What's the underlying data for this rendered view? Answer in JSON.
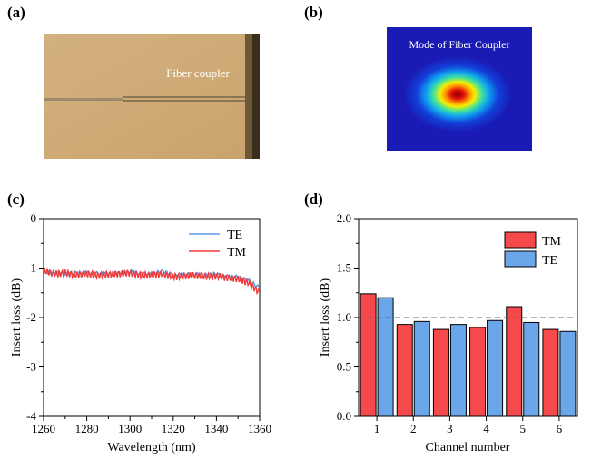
{
  "panels": {
    "a": {
      "label": "(a)",
      "annotation": "Fiber coupler"
    },
    "b": {
      "label": "(b)",
      "title": "Mode of Fiber Coupler"
    },
    "c": {
      "label": "(c)"
    },
    "d": {
      "label": "(d)"
    }
  },
  "colors": {
    "TM": "#f23c3c",
    "TE": "#5a9be6",
    "TM_bar": "#f5494b",
    "TE_bar": "#6aa6e8"
  },
  "chart_data": [
    {
      "type": "line",
      "panel": "c",
      "xlabel": "Wavelength (nm)",
      "ylabel": "Insert loss (dB)",
      "xlim": [
        1260,
        1360
      ],
      "ylim": [
        -4,
        0
      ],
      "xticks": [
        "1260",
        "1280",
        "1300",
        "1320",
        "1340",
        "1360"
      ],
      "yticks": [
        "0",
        "-1",
        "-2",
        "-3",
        "-4"
      ],
      "legend": "top-right",
      "series": [
        {
          "name": "TE",
          "x": [
            1260,
            1265,
            1270,
            1275,
            1280,
            1285,
            1290,
            1295,
            1300,
            1305,
            1310,
            1315,
            1320,
            1325,
            1330,
            1335,
            1340,
            1345,
            1350,
            1355,
            1360
          ],
          "y": [
            -1.08,
            -1.1,
            -1.12,
            -1.1,
            -1.09,
            -1.11,
            -1.12,
            -1.1,
            -1.08,
            -1.11,
            -1.12,
            -1.06,
            -1.15,
            -1.13,
            -1.12,
            -1.14,
            -1.13,
            -1.17,
            -1.18,
            -1.25,
            -1.4
          ]
        },
        {
          "name": "TM",
          "x": [
            1260,
            1265,
            1270,
            1275,
            1280,
            1285,
            1290,
            1295,
            1300,
            1305,
            1310,
            1315,
            1320,
            1325,
            1330,
            1335,
            1340,
            1345,
            1350,
            1355,
            1360
          ],
          "y": [
            -1.05,
            -1.12,
            -1.1,
            -1.14,
            -1.12,
            -1.15,
            -1.13,
            -1.12,
            -1.1,
            -1.15,
            -1.14,
            -1.12,
            -1.18,
            -1.16,
            -1.15,
            -1.17,
            -1.16,
            -1.2,
            -1.22,
            -1.3,
            -1.5
          ]
        }
      ]
    },
    {
      "type": "bar",
      "panel": "d",
      "xlabel": "Channel number",
      "ylabel": "Insert loss (dB)",
      "categories": [
        "1",
        "2",
        "3",
        "4",
        "5",
        "6"
      ],
      "ylim": [
        0,
        2
      ],
      "yticks": [
        "0.0",
        "0.5",
        "1.0",
        "1.5",
        "2.0"
      ],
      "reference_line": 1.0,
      "legend": "top-right",
      "series": [
        {
          "name": "TM",
          "values": [
            1.24,
            0.93,
            0.88,
            0.9,
            1.11,
            0.88
          ]
        },
        {
          "name": "TE",
          "values": [
            1.2,
            0.96,
            0.93,
            0.97,
            0.95,
            0.86
          ]
        }
      ]
    }
  ]
}
